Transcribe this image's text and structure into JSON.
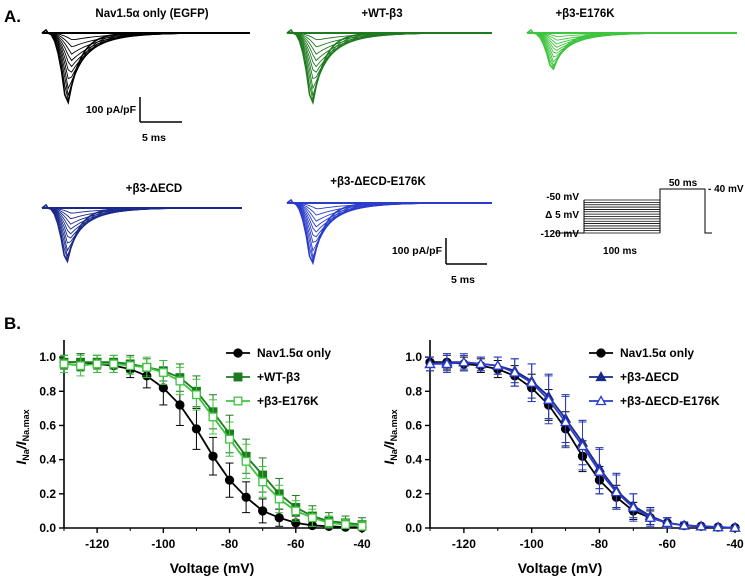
{
  "panel_a": {
    "label": "A.",
    "traces": [
      {
        "title": "Nav1.5α only (EGFP)",
        "color": "#000000",
        "peak": 1.0
      },
      {
        "title": "+WT-β3",
        "color": "#1e7a1e",
        "peak": 1.0
      },
      {
        "title": "+β3-E176K",
        "color": "#3ec43e",
        "peak": 0.7
      },
      {
        "title": "+β3-ΔECD",
        "color": "#1a2a8a",
        "peak": 0.95
      },
      {
        "title": "+β3-ΔECD-E176K",
        "color": "#2a3ccc",
        "peak": 0.95
      }
    ],
    "scalebar_1": {
      "current": "100 pA/pF",
      "time": "5 ms"
    },
    "scalebar_2": {
      "current": "100 pA/pF",
      "time": "5 ms"
    },
    "protocol": {
      "top": "-50 mV",
      "step": "Δ 5 mV",
      "bottom": "-120 mV",
      "prepulse_duration": "100 ms",
      "test_duration": "50 ms",
      "test_voltage": "- 40 mV"
    }
  },
  "panel_b": {
    "label": "B."
  },
  "chart_data": [
    {
      "type": "line",
      "xlabel": "Voltage (mV)",
      "ylabel_main": "I",
      "ylabel_sub1": "Na",
      "ylabel_sep": "/I",
      "ylabel_sub2": "Na.max",
      "xlim": [
        -130,
        -40
      ],
      "ylim": [
        0,
        1.1
      ],
      "xticks": [
        -120,
        -100,
        -80,
        -60,
        -40
      ],
      "yticks": [
        0.0,
        0.2,
        0.4,
        0.6,
        0.8,
        1.0
      ],
      "xtick_labels": [
        "-120",
        "-100",
        "-80",
        "-60",
        "-40"
      ],
      "ytick_labels": [
        "0.0",
        "0.2",
        "0.4",
        "0.6",
        "0.8",
        "1.0"
      ],
      "legend_position": "top-right",
      "series": [
        {
          "name": "Nav1.5α only",
          "color": "#000000",
          "marker": "circle",
          "filled": true,
          "x": [
            -130,
            -125,
            -120,
            -115,
            -110,
            -105,
            -100,
            -95,
            -90,
            -85,
            -80,
            -75,
            -70,
            -65,
            -60,
            -55,
            -50,
            -45,
            -40
          ],
          "y": [
            0.97,
            0.97,
            0.96,
            0.95,
            0.93,
            0.89,
            0.82,
            0.72,
            0.58,
            0.42,
            0.28,
            0.18,
            0.1,
            0.06,
            0.03,
            0.015,
            0.01,
            0.005,
            0.002
          ],
          "err": [
            0.04,
            0.05,
            0.05,
            0.04,
            0.05,
            0.07,
            0.1,
            0.12,
            0.12,
            0.11,
            0.1,
            0.09,
            0.07,
            0.05,
            0.04,
            0.03,
            0.02,
            0.01,
            0.01
          ]
        },
        {
          "name": "+WT-β3",
          "color": "#1e7a1e",
          "marker": "square",
          "filled": true,
          "x": [
            -130,
            -125,
            -120,
            -115,
            -110,
            -105,
            -100,
            -95,
            -90,
            -85,
            -80,
            -75,
            -70,
            -65,
            -60,
            -55,
            -50,
            -45,
            -40
          ],
          "y": [
            0.97,
            0.97,
            0.97,
            0.97,
            0.96,
            0.94,
            0.92,
            0.88,
            0.8,
            0.68,
            0.55,
            0.42,
            0.31,
            0.2,
            0.12,
            0.07,
            0.04,
            0.03,
            0.02
          ],
          "err": [
            0.04,
            0.05,
            0.04,
            0.04,
            0.05,
            0.05,
            0.06,
            0.08,
            0.09,
            0.1,
            0.11,
            0.1,
            0.1,
            0.09,
            0.07,
            0.06,
            0.05,
            0.04,
            0.04
          ]
        },
        {
          "name": "+β3-E176K",
          "color": "#3ec43e",
          "marker": "square",
          "filled": false,
          "x": [
            -130,
            -125,
            -120,
            -115,
            -110,
            -105,
            -100,
            -95,
            -90,
            -85,
            -80,
            -75,
            -70,
            -65,
            -60,
            -55,
            -50,
            -45,
            -40
          ],
          "y": [
            0.96,
            0.95,
            0.96,
            0.96,
            0.95,
            0.94,
            0.91,
            0.86,
            0.78,
            0.65,
            0.52,
            0.39,
            0.27,
            0.17,
            0.1,
            0.06,
            0.03,
            0.02,
            0.01
          ],
          "err": [
            0.05,
            0.06,
            0.05,
            0.05,
            0.05,
            0.06,
            0.07,
            0.08,
            0.09,
            0.1,
            0.1,
            0.1,
            0.09,
            0.08,
            0.06,
            0.05,
            0.04,
            0.03,
            0.03
          ]
        }
      ]
    },
    {
      "type": "line",
      "xlabel": "Voltage (mV)",
      "ylabel_main": "I",
      "ylabel_sub1": "Na",
      "ylabel_sep": "/I",
      "ylabel_sub2": "Na.max",
      "xlim": [
        -130,
        -40
      ],
      "ylim": [
        0,
        1.1
      ],
      "xticks": [
        -120,
        -100,
        -80,
        -60,
        -40
      ],
      "yticks": [
        0.0,
        0.2,
        0.4,
        0.6,
        0.8,
        1.0
      ],
      "xtick_labels": [
        "-120",
        "-100",
        "-80",
        "-60",
        "-40"
      ],
      "ytick_labels": [
        "0.0",
        "0.2",
        "0.4",
        "0.6",
        "0.8",
        "1.0"
      ],
      "legend_position": "top-right",
      "series": [
        {
          "name": "Nav1.5α only",
          "color": "#000000",
          "marker": "circle",
          "filled": true,
          "x": [
            -130,
            -125,
            -120,
            -115,
            -110,
            -105,
            -100,
            -95,
            -90,
            -85,
            -80,
            -75,
            -70,
            -65,
            -60,
            -55,
            -50,
            -45,
            -40
          ],
          "y": [
            0.97,
            0.97,
            0.96,
            0.95,
            0.93,
            0.89,
            0.82,
            0.72,
            0.58,
            0.42,
            0.28,
            0.18,
            0.1,
            0.06,
            0.03,
            0.015,
            0.01,
            0.005,
            0.002
          ],
          "err": [
            0.03,
            0.04,
            0.04,
            0.04,
            0.05,
            0.06,
            0.08,
            0.09,
            0.1,
            0.09,
            0.08,
            0.07,
            0.05,
            0.04,
            0.03,
            0.02,
            0.01,
            0.01,
            0.005
          ]
        },
        {
          "name": "+β3-ΔECD",
          "color": "#1a2a8a",
          "marker": "triangle",
          "filled": true,
          "x": [
            -130,
            -125,
            -120,
            -115,
            -110,
            -105,
            -100,
            -95,
            -90,
            -85,
            -80,
            -75,
            -70,
            -65,
            -60,
            -55,
            -50,
            -45,
            -40
          ],
          "y": [
            0.96,
            0.97,
            0.97,
            0.96,
            0.95,
            0.92,
            0.86,
            0.77,
            0.64,
            0.5,
            0.35,
            0.22,
            0.13,
            0.07,
            0.03,
            0.015,
            0.01,
            0.005,
            0.002
          ],
          "err": [
            0.04,
            0.05,
            0.04,
            0.04,
            0.05,
            0.07,
            0.1,
            0.13,
            0.14,
            0.13,
            0.12,
            0.1,
            0.07,
            0.05,
            0.03,
            0.02,
            0.01,
            0.01,
            0.005
          ]
        },
        {
          "name": "+β3-ΔECD-E176K",
          "color": "#2a3ccc",
          "marker": "triangle",
          "filled": false,
          "x": [
            -130,
            -125,
            -120,
            -115,
            -110,
            -105,
            -100,
            -95,
            -90,
            -85,
            -80,
            -75,
            -70,
            -65,
            -60,
            -55,
            -50,
            -45,
            -40
          ],
          "y": [
            0.96,
            0.96,
            0.97,
            0.96,
            0.95,
            0.91,
            0.85,
            0.75,
            0.62,
            0.48,
            0.33,
            0.21,
            0.12,
            0.06,
            0.03,
            0.015,
            0.01,
            0.005,
            0.002
          ],
          "err": [
            0.04,
            0.05,
            0.05,
            0.04,
            0.05,
            0.08,
            0.11,
            0.14,
            0.15,
            0.14,
            0.13,
            0.1,
            0.08,
            0.05,
            0.03,
            0.02,
            0.01,
            0.01,
            0.005
          ]
        }
      ]
    }
  ]
}
